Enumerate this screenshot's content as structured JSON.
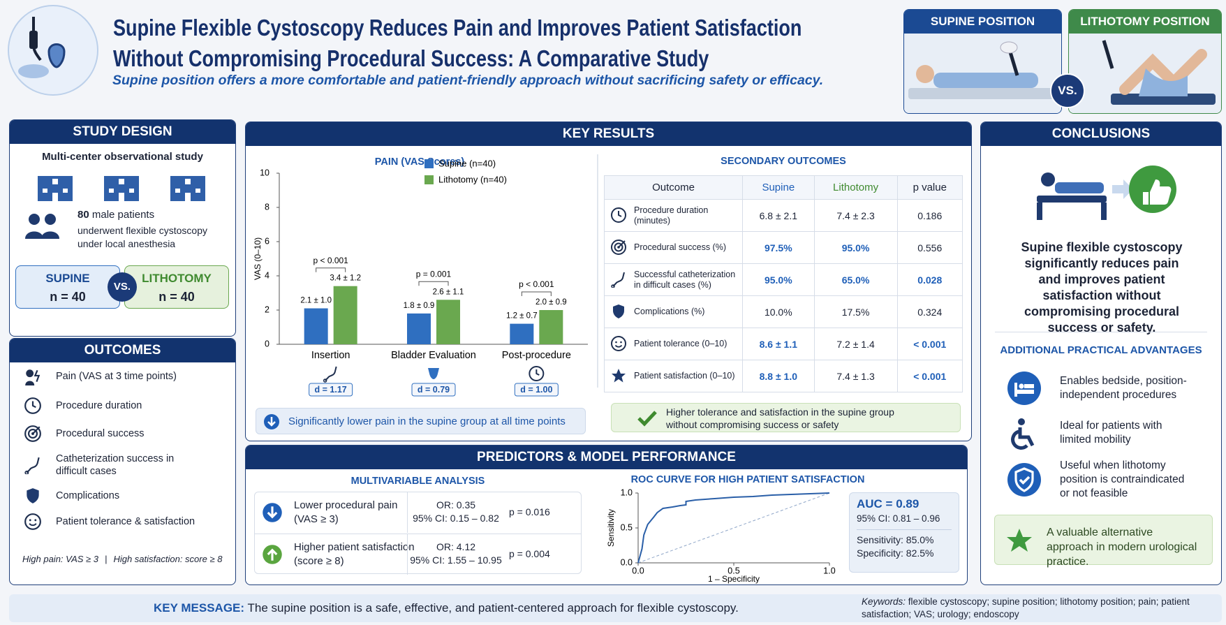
{
  "header": {
    "title": [
      "Supine Flexible Cystoscopy Reduces Pain and Improves Patient Satisfaction",
      "Without Compromising Procedural Success: A Comparative Study"
    ],
    "subtitle": "Supine position offers a more comfortable and patient-friendly approach without sacrificing safety or efficacy.",
    "positions": [
      "SUPINE POSITION",
      "LITHOTOMY POSITION"
    ],
    "vs": "VS."
  },
  "study_design": {
    "title": "STUDY DESIGN",
    "type": "Multi-center observational study",
    "patients": {
      "count": "80",
      "label": "male patients",
      "desc": "underwent flexible cystoscopy under local anesthesia"
    },
    "groups": [
      {
        "name": "SUPINE",
        "n": "n = 40"
      },
      {
        "name": "LITHOTOMY",
        "n": "n = 40"
      }
    ],
    "vs": "VS."
  },
  "outcomes": {
    "title": "OUTCOMES",
    "items": [
      "Pain (VAS at 3 time points)",
      "Procedure duration",
      "Procedural success",
      "Catheterization success in difficult cases",
      "Complications",
      "Patient tolerance & satisfaction"
    ],
    "footnote": [
      "High pain: VAS ≥ 3",
      "|",
      "High satisfaction: score ≥ 8"
    ]
  },
  "key_results": {
    "title": "KEY RESULTS",
    "secondary": {
      "title": "SECONDARY OUTCOMES",
      "headers": [
        "Outcome",
        "Supine",
        "Lithotomy",
        "p value"
      ],
      "rows": [
        [
          "Procedure duration (minutes)",
          "6.8 ± 2.1",
          "7.4 ± 2.3",
          "0.186"
        ],
        [
          "Procedural success (%)",
          "97.5%",
          "95.0%",
          "0.556"
        ],
        [
          "Successful catheterization in difficult cases (%)",
          "95.0%",
          "65.0%",
          "0.028"
        ],
        [
          "Complications (%)",
          "10.0%",
          "17.5%",
          "0.324"
        ],
        [
          "Patient tolerance (0–10)",
          "8.6 ± 1.1",
          "7.2 ± 1.4",
          "< 0.001"
        ],
        [
          "Patient satisfaction (0–10)",
          "8.8 ± 1.0",
          "7.4 ± 1.3",
          "< 0.001"
        ]
      ],
      "note": "Higher tolerance and satisfaction in the supine group without compromising success or safety"
    }
  },
  "predictors": {
    "title": "PREDICTORS & MODEL PERFORMANCE",
    "multivariable_title": "MULTIVARIABLE ANALYSIS",
    "rows": [
      {
        "label": "Lower procedural pain",
        "sub": "(VAS ≥ 3)",
        "or": "OR: 0.35",
        "ci": "95% CI: 0.15 – 0.82",
        "p": "p = 0.016"
      },
      {
        "label": "Higher patient satisfaction",
        "sub": "(score ≥ 8)",
        "or": "OR: 4.12",
        "ci": "95% CI: 1.55 – 10.95",
        "p": "p = 0.004"
      }
    ],
    "auc": {
      "auc": "AUC = 0.89",
      "ci": "95% CI: 0.81 – 0.96",
      "sensitivity": "Sensitivity: 85.0%",
      "specificity": "Specificity: 82.5%"
    }
  },
  "conclusions": {
    "title": "CONCLUSIONS",
    "text": "Supine flexible cystoscopy significantly reduces pain and improves patient satisfaction without compromising procedural success or safety.",
    "advantages_title": "ADDITIONAL PRACTICAL ADVANTAGES",
    "advantages": [
      "Enables bedside, position-independent procedures",
      "Ideal for patients with limited mobility",
      "Useful when lithotomy position is contraindicated or not feasible"
    ],
    "final_note": "A valuable alternative approach in modern urological practice."
  },
  "footer": {
    "key_message_label": "KEY MESSAGE:",
    "key_message": "The supine position is a safe, effective, and patient-centered approach for flexible cystoscopy.",
    "keywords_label": "Keywords:",
    "keywords": "flexible cystoscopy; supine position; lithotomy position; pain; patient satisfaction; VAS; urology; endoscopy"
  },
  "chart_data": [
    {
      "type": "bar",
      "title": "PAIN (VAS Scores)",
      "y_label": "VAS (0–10)",
      "categories": [
        "Insertion",
        "Bladder Evaluation",
        "Post-procedure"
      ],
      "series": [
        {
          "name": "Supine (n=40)",
          "color": "#2f6fc0",
          "values": [
            2.1,
            1.8,
            1.2
          ],
          "value_labels": [
            "2.1 ± 1.0",
            "1.8 ± 0.9",
            "1.2 ± 0.7"
          ]
        },
        {
          "name": "Lithotomy (n=40)",
          "color": "#6aa84f",
          "values": [
            3.4,
            2.6,
            2.0
          ],
          "value_labels": [
            "3.4 ± 1.2",
            "2.6 ± 1.1",
            "2.0 ± 0.9"
          ]
        }
      ],
      "ylim": [
        0,
        10
      ],
      "yticks": [
        0,
        2,
        4,
        6,
        8,
        10
      ],
      "p_values": [
        "p < 0.001",
        "p = 0.001",
        "p < 0.001"
      ],
      "effect_sizes": [
        "d = 1.17",
        "d = 0.79",
        "d = 1.00"
      ],
      "note": "Significantly lower pain in the supine group at all time points"
    },
    {
      "type": "line",
      "title": "ROC CURVE FOR HIGH PATIENT SATISFACTION",
      "x_label": "1 – Specificity",
      "y_label": "Sensitivity",
      "x": [
        0,
        0.02,
        0.03,
        0.05,
        0.08,
        0.1,
        0.13,
        0.18,
        0.22,
        0.25,
        0.25,
        0.3,
        0.4,
        0.5,
        0.6,
        0.7,
        0.8,
        0.9,
        1.0
      ],
      "series": [
        {
          "color": "#2a5fa8",
          "values": [
            0,
            0.2,
            0.4,
            0.55,
            0.65,
            0.72,
            0.78,
            0.8,
            0.82,
            0.83,
            0.88,
            0.9,
            0.92,
            0.94,
            0.95,
            0.97,
            0.98,
            0.99,
            1.0
          ]
        }
      ],
      "xlim": [
        0,
        1
      ],
      "ylim": [
        0,
        1
      ],
      "xticks": [
        {
          "value": 0,
          "label": "0.0"
        },
        {
          "value": 0.5,
          "label": "0.5"
        },
        {
          "value": 1,
          "label": "1.0"
        }
      ],
      "yticks": [
        {
          "value": 0,
          "label": "0.0"
        },
        {
          "value": 0.5,
          "label": "0.5"
        },
        {
          "value": 1,
          "label": "1.0"
        }
      ]
    }
  ]
}
